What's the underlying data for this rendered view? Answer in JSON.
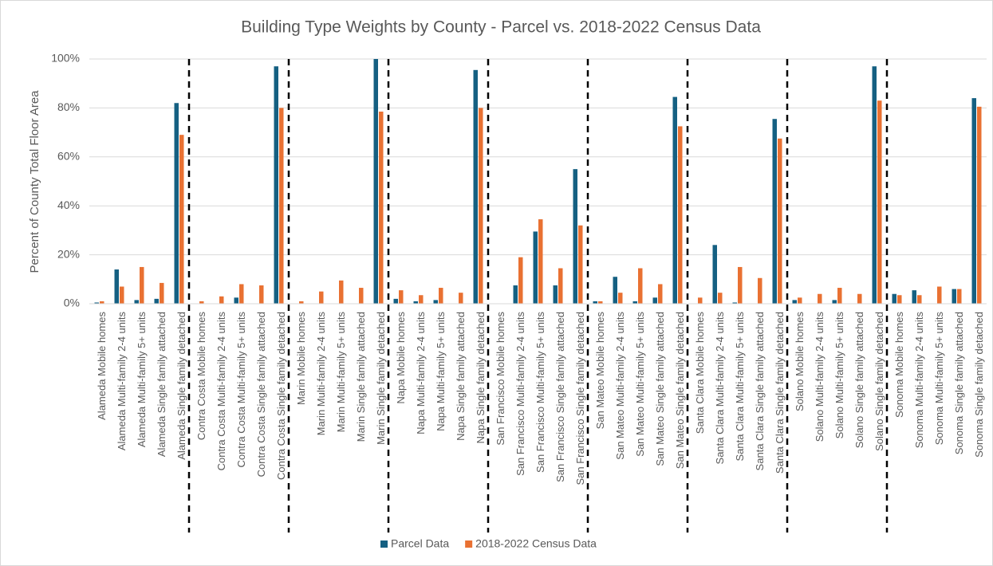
{
  "chart_data": {
    "type": "bar",
    "title": "Building Type Weights by County - Parcel vs. 2018-2022 Census Data",
    "y_label": "Percent of County Total Floor Area",
    "categories": [
      "Alameda Mobile homes",
      "Alameda Multi-family 2-4 units",
      "Alameda Multi-family 5+ units",
      "Alameda Single family attached",
      "Alameda Single family detached",
      "Contra Costa Mobile homes",
      "Contra Costa Multi-family 2-4 units",
      "Contra Costa Multi-family 5+ units",
      "Contra Costa Single family attached",
      "Contra Costa Single family detached",
      "Marin Mobile homes",
      "Marin Multi-family 2-4 units",
      "Marin Multi-family 5+ units",
      "Marin Single family attached",
      "Marin Single family detached",
      "Napa Mobile homes",
      "Napa Multi-family 2-4 units",
      "Napa Multi-family 5+ units",
      "Napa Single family attached",
      "Napa Single family detached",
      "San Francisco Mobile homes",
      "San Francisco Multi-family 2-4 units",
      "San Francisco Multi-family 5+ units",
      "San Francisco Single family attached",
      "San Francisco Single family detached",
      "San Mateo Mobile homes",
      "San Mateo Multi-family 2-4 units",
      "San Mateo Multi-family 5+ units",
      "San Mateo Single family attached",
      "San Mateo Single family detached",
      "Santa Clara Mobile homes",
      "Santa Clara Multi-family 2-4 units",
      "Santa Clara Multi-family 5+ units",
      "Santa Clara Single family attached",
      "Santa Clara Single family detached",
      "Solano Mobile homes",
      "Solano Multi-family 2-4 units",
      "Solano Multi-family 5+ units",
      "Solano Single family attached",
      "Solano Single family detached",
      "Sonoma Mobile homes",
      "Sonoma Multi-family 2-4 units",
      "Sonoma Multi-family 5+ units",
      "Sonoma Single family attached",
      "Sonoma Single family detached"
    ],
    "series": [
      {
        "name": "Parcel Data",
        "color": "#156082",
        "values": [
          0.5,
          14,
          1.5,
          2,
          82,
          0,
          0,
          2.5,
          0,
          97,
          0,
          0,
          0,
          0,
          100,
          2,
          1,
          1.5,
          0,
          95.5,
          0,
          7.5,
          29.5,
          7.5,
          55,
          1,
          11,
          1,
          2.5,
          84.5,
          0,
          24,
          0.5,
          0,
          75.5,
          1.5,
          0,
          1.5,
          0,
          97,
          4,
          5.5,
          0,
          6,
          84
        ]
      },
      {
        "name": "2018-2022 Census Data",
        "color": "#e97132",
        "values": [
          1,
          7,
          15,
          8.5,
          69,
          1,
          3,
          8,
          7.5,
          80,
          1,
          5,
          9.5,
          6.5,
          78.5,
          5.5,
          3.5,
          6.5,
          4.5,
          80,
          0,
          19,
          34.5,
          14.5,
          32,
          1,
          4.5,
          14.5,
          8,
          72.5,
          2.5,
          4.5,
          15,
          10.5,
          67.5,
          2.5,
          4,
          6.5,
          4,
          83,
          3.5,
          3.5,
          7,
          6,
          80.5
        ]
      }
    ],
    "ylim": [
      0,
      100
    ],
    "yticks": [
      {
        "value": 0,
        "label": "0%"
      },
      {
        "value": 20,
        "label": "20%"
      },
      {
        "value": 40,
        "label": "40%"
      },
      {
        "value": 60,
        "label": "60%"
      },
      {
        "value": 80,
        "label": "80%"
      },
      {
        "value": 100,
        "label": "100%"
      }
    ],
    "grid": true,
    "legend": "bottom"
  }
}
